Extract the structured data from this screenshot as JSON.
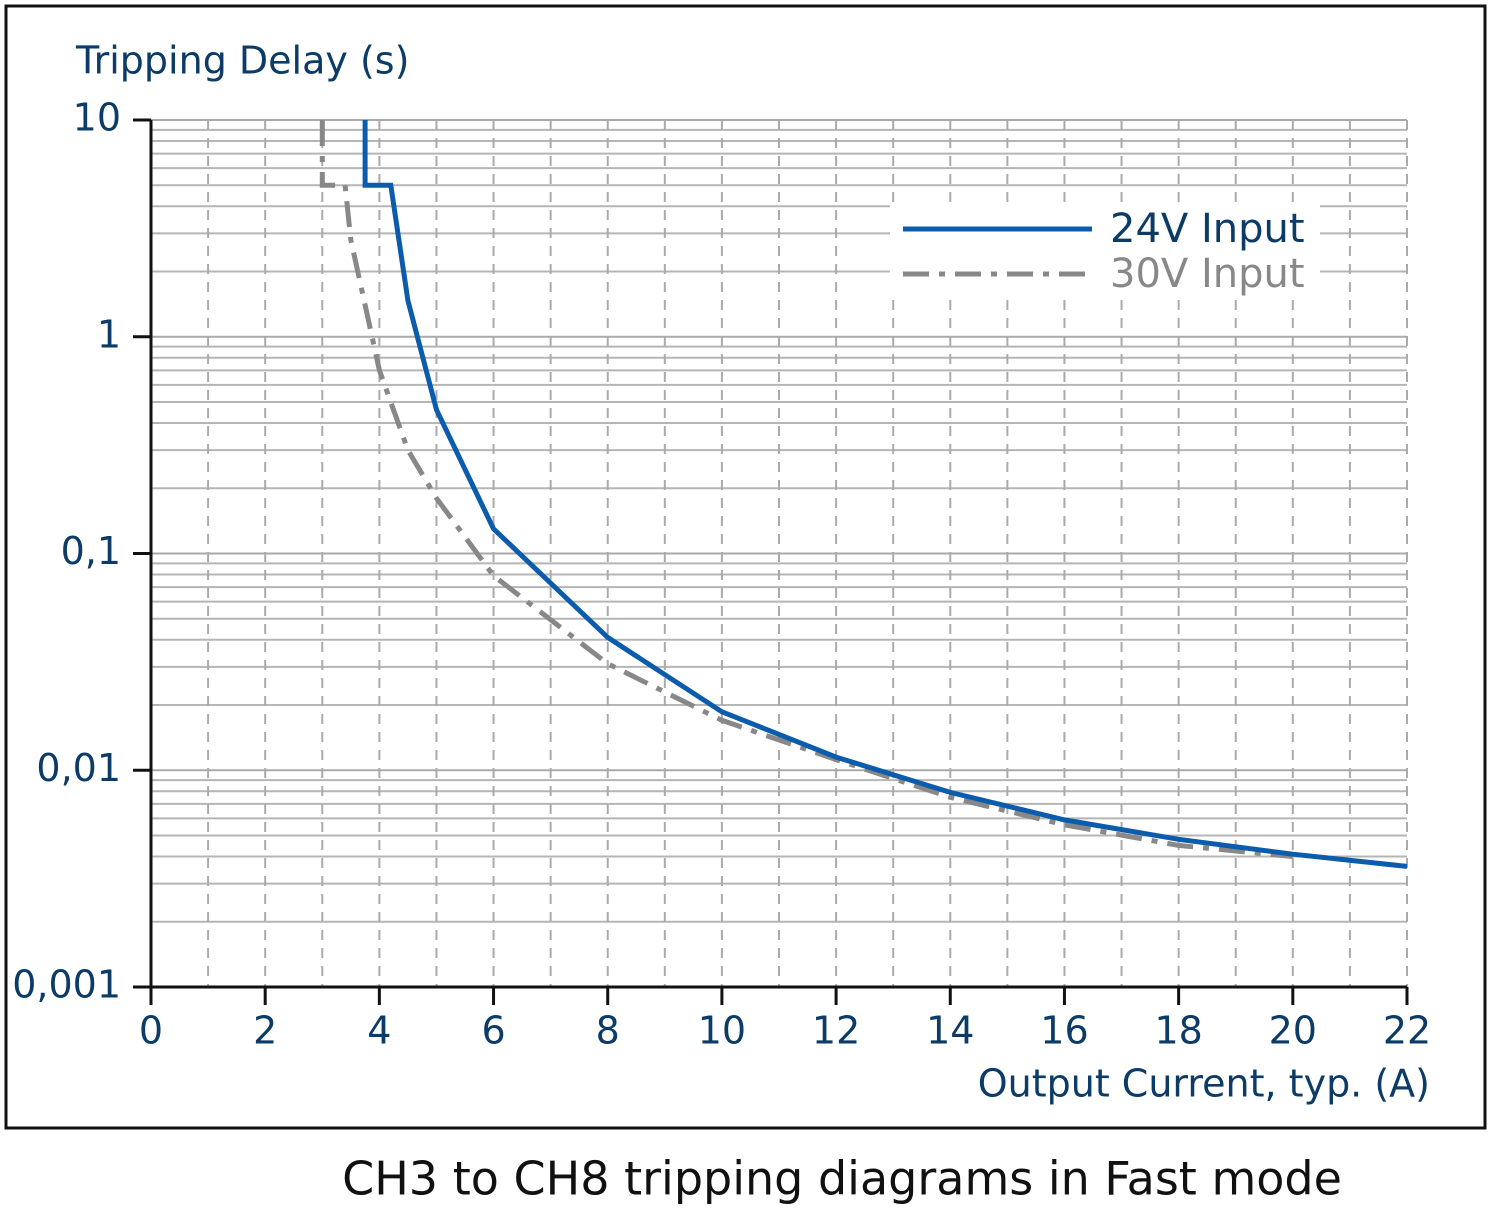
{
  "chart_data": {
    "type": "line",
    "caption": "CH3 to CH8 tripping diagrams in Fast mode",
    "y_label": "Tripping Delay (s)",
    "x_label": "Output Current, typ. (A)",
    "xlim": [
      0,
      22
    ],
    "xticks": [
      0,
      2,
      4,
      6,
      8,
      10,
      12,
      14,
      16,
      18,
      20,
      22
    ],
    "ylim": [
      0.001,
      10
    ],
    "y_log": true,
    "yticks": [
      {
        "value": 0.001,
        "label": "0,001"
      },
      {
        "value": 0.01,
        "label": "0,01"
      },
      {
        "value": 0.1,
        "label": "0,1"
      },
      1,
      10
    ],
    "grid": true,
    "minor_grid": true,
    "legend": "upper right",
    "series": [
      {
        "name": "24V Input",
        "color": "#0b5cad",
        "style": "solid",
        "x": [
          3.75,
          3.75,
          4.2,
          4.5,
          5,
          6,
          8,
          10,
          12,
          14,
          16,
          18,
          20,
          22
        ],
        "values": [
          10,
          5,
          5,
          1.47,
          0.46,
          0.13,
          0.041,
          0.0186,
          0.0115,
          0.0079,
          0.0059,
          0.0048,
          0.0041,
          0.0036
        ]
      },
      {
        "name": "30V Input",
        "color": "#888888",
        "style": "dashdot",
        "x": [
          3.0,
          3.0,
          3.4,
          3.5,
          4,
          4.5,
          5,
          6,
          8,
          10,
          12,
          14,
          16,
          18,
          20
        ],
        "values": [
          10,
          5,
          5,
          2.8,
          0.7,
          0.3,
          0.18,
          0.079,
          0.031,
          0.017,
          0.0112,
          0.0075,
          0.0056,
          0.0045,
          0.004
        ]
      }
    ]
  }
}
